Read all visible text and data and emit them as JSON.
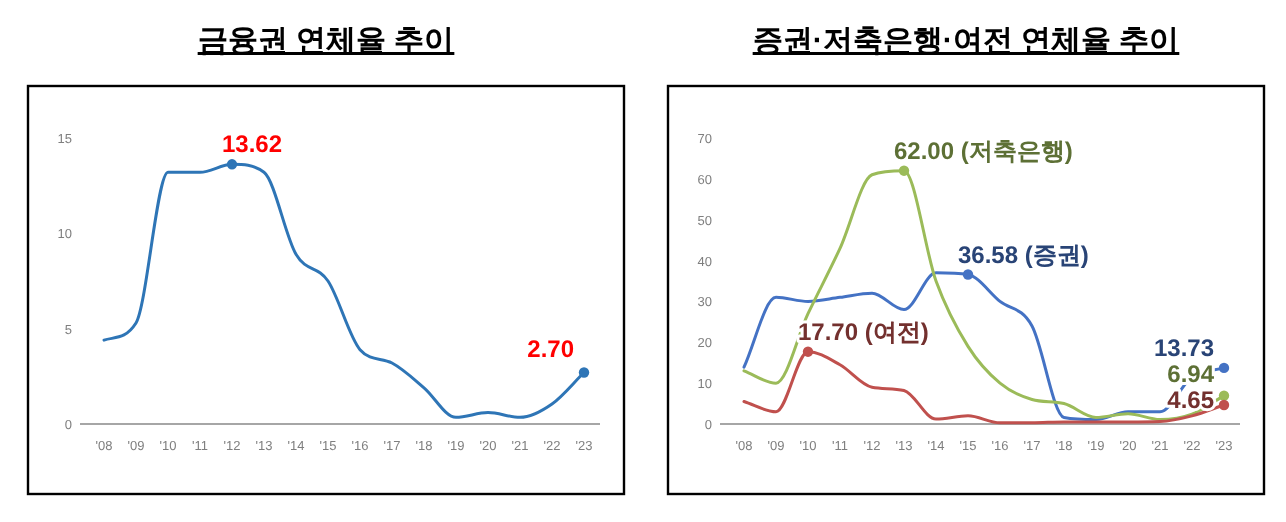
{
  "chart_data": [
    {
      "type": "line",
      "title": "금융권 연체율 추이",
      "categories": [
        "'08",
        "'09",
        "'10",
        "'11",
        "'12",
        "'13",
        "'14",
        "'15",
        "'16",
        "'17",
        "'18",
        "'19",
        "'20",
        "'21",
        "'22",
        "'23"
      ],
      "series": [
        {
          "color": "#2e75b6",
          "values": [
            4.4,
            5.3,
            13.2,
            13.2,
            13.62,
            13.2,
            8.9,
            7.5,
            3.9,
            3.2,
            1.9,
            0.35,
            0.6,
            0.35,
            1.05,
            2.7
          ]
        }
      ],
      "ylim": [
        0,
        15
      ],
      "yticks": [
        0,
        5,
        10,
        15
      ],
      "grid": false,
      "marker": "none",
      "line_style": "solid",
      "annotations": [
        {
          "text": "13.62",
          "x": "'12",
          "y": 13.62
        },
        {
          "text": "2.70",
          "x": "'23",
          "y": 2.7
        }
      ]
    },
    {
      "type": "line",
      "title": "증권·저축은행·여전 연체율 추이",
      "categories": [
        "'08",
        "'09",
        "'10",
        "'11",
        "'12",
        "'13",
        "'14",
        "'15",
        "'16",
        "'17",
        "'18",
        "'19",
        "'20",
        "'21",
        "'22",
        "'23"
      ],
      "series": [
        {
          "color": "#4472c4",
          "values": [
            13.9,
            31,
            30,
            31,
            32,
            28,
            37,
            36.58,
            30,
            24,
            1.6,
            1.1,
            3,
            3,
            11.5,
            13.73
          ]
        },
        {
          "color": "#9bbb59",
          "values": [
            13,
            10,
            27,
            43,
            61,
            62,
            35,
            19,
            10,
            6,
            5,
            1.6,
            2.5,
            1.1,
            2.4,
            6.94
          ]
        },
        {
          "color": "#c0504d",
          "values": [
            5.5,
            3,
            17.7,
            14.5,
            9,
            8.2,
            1.2,
            2,
            0.3,
            0.3,
            0.5,
            0.5,
            0.5,
            0.6,
            2,
            4.65
          ]
        }
      ],
      "ylim": [
        0,
        70
      ],
      "yticks": [
        0,
        10,
        20,
        30,
        40,
        50,
        60,
        70
      ],
      "grid": false,
      "marker": "none",
      "line_style": "solid",
      "annotations": [
        {
          "text": "62.00 (저축은행)",
          "x": "'13",
          "y": 62
        },
        {
          "text": "36.58 (증권)",
          "x": "'15",
          "y": 36.58
        },
        {
          "text": "17.70 (여전)",
          "x": "'10",
          "y": 17.7
        },
        {
          "text": "13.73",
          "x": "'23",
          "y": 13.73
        },
        {
          "text": "6.94",
          "x": "'23",
          "y": 6.94
        },
        {
          "text": "4.65",
          "x": "'23",
          "y": 4.65
        }
      ]
    }
  ]
}
